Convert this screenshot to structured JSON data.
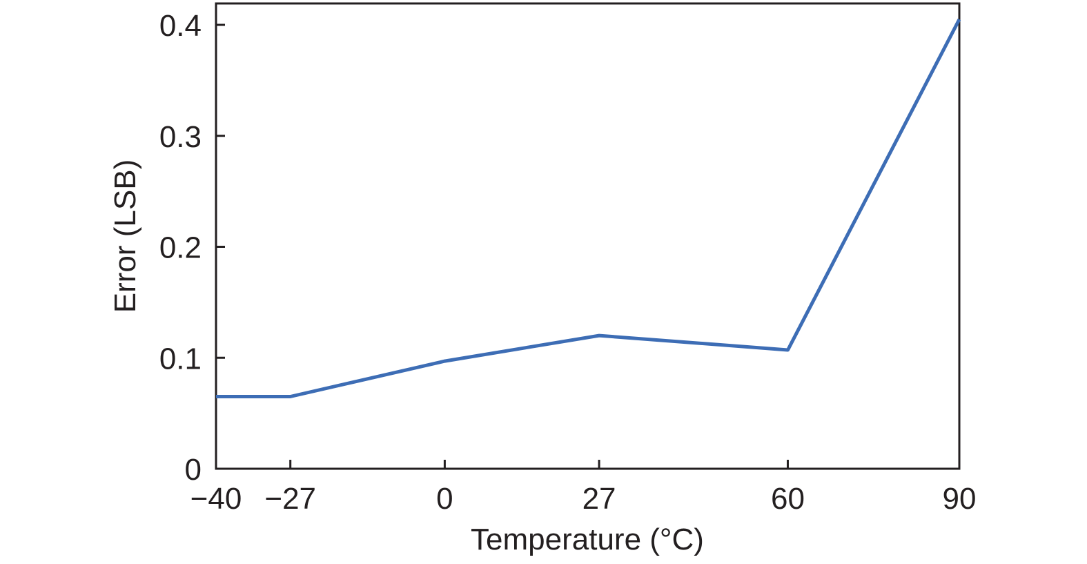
{
  "chart_data": {
    "type": "line",
    "title": "",
    "xlabel": "Temperature (°C)",
    "ylabel": "Error (LSB)",
    "xlim": [
      -40,
      90
    ],
    "ylim": [
      0,
      0.42
    ],
    "x_ticks": [
      -40,
      -27,
      0,
      27,
      60,
      90
    ],
    "x_tick_labels": [
      "−40",
      "−27",
      "0",
      "27",
      "60",
      "90"
    ],
    "y_ticks": [
      0,
      0.1,
      0.2,
      0.3,
      0.4
    ],
    "y_tick_labels": [
      "0",
      "0.1",
      "0.2",
      "0.3",
      "0.4"
    ],
    "grid": false,
    "legend": "none",
    "series": [
      {
        "color": "#3d6db5",
        "x": [
          -40,
          -27,
          0,
          27,
          60,
          90
        ],
        "y": [
          0.065,
          0.065,
          0.097,
          0.12,
          0.107,
          0.405
        ]
      }
    ]
  }
}
